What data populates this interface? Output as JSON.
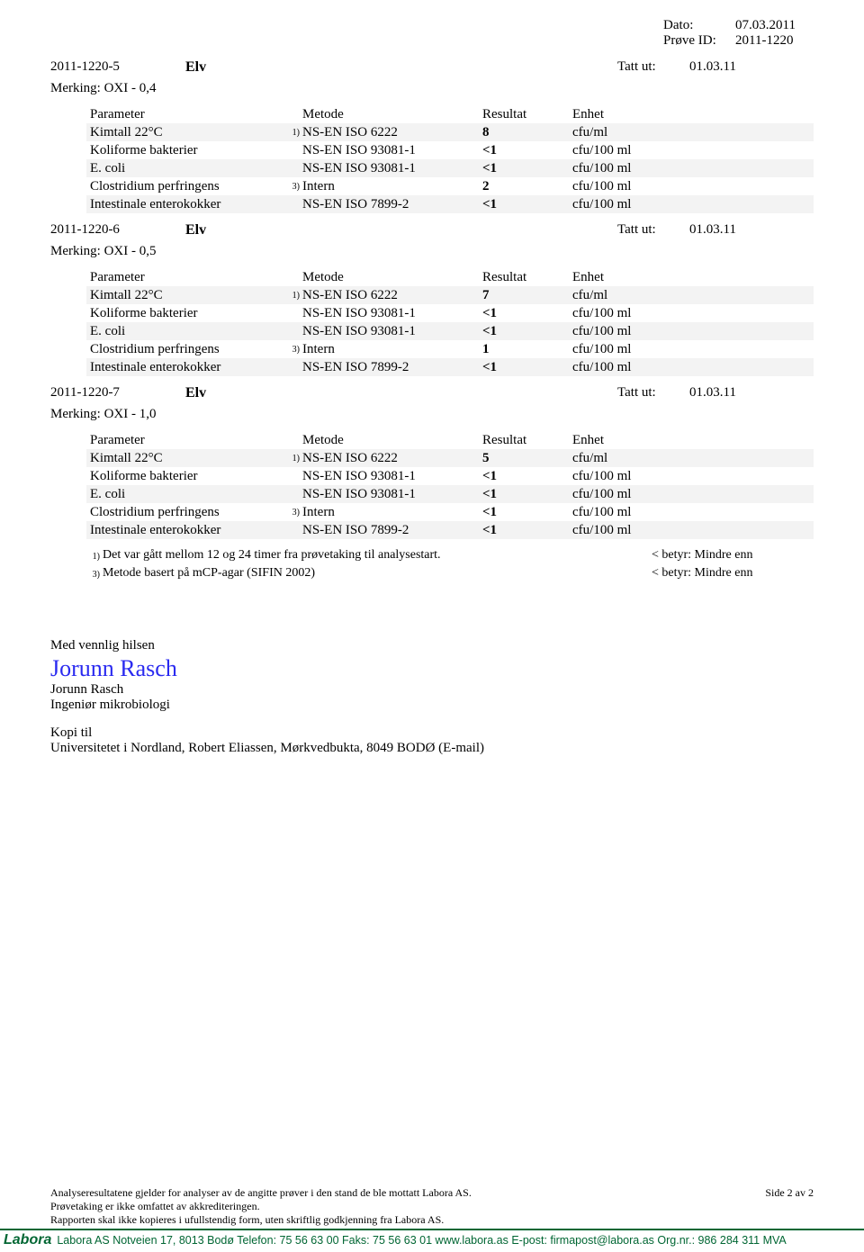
{
  "header": {
    "dato_label": "Dato:",
    "dato_value": "07.03.2011",
    "prove_label": "Prøve ID:",
    "prove_value": "2011-1220"
  },
  "column_headers": {
    "param": "Parameter",
    "metode": "Metode",
    "resultat": "Resultat",
    "enhet": "Enhet"
  },
  "tatt_ut_label": "Tatt ut:",
  "samples": [
    {
      "id": "2011-1220-5",
      "type": "Elv",
      "tatt_ut": "01.03.11",
      "merking": "Merking: OXI - 0,4",
      "rows": [
        {
          "param": "Kimtall 22°C",
          "note": "1)",
          "metode": "NS-EN ISO 6222",
          "res": "8",
          "enhet": "cfu/ml",
          "stripe": true
        },
        {
          "param": "Koliforme bakterier",
          "note": "",
          "metode": "NS-EN ISO 93081-1",
          "res": "<1",
          "enhet": "cfu/100 ml",
          "stripe": false
        },
        {
          "param": "E. coli",
          "note": "",
          "metode": "NS-EN ISO 93081-1",
          "res": "<1",
          "enhet": "cfu/100 ml",
          "stripe": true
        },
        {
          "param": "Clostridium perfringens",
          "note": "3)",
          "metode": "Intern",
          "res": "2",
          "enhet": "cfu/100 ml",
          "stripe": false
        },
        {
          "param": "Intestinale enterokokker",
          "note": "",
          "metode": "NS-EN ISO 7899-2",
          "res": "<1",
          "enhet": "cfu/100 ml",
          "stripe": true
        }
      ]
    },
    {
      "id": "2011-1220-6",
      "type": "Elv",
      "tatt_ut": "01.03.11",
      "merking": "Merking: OXI - 0,5",
      "rows": [
        {
          "param": "Kimtall 22°C",
          "note": "1)",
          "metode": "NS-EN ISO 6222",
          "res": "7",
          "enhet": "cfu/ml",
          "stripe": true
        },
        {
          "param": "Koliforme bakterier",
          "note": "",
          "metode": "NS-EN ISO 93081-1",
          "res": "<1",
          "enhet": "cfu/100 ml",
          "stripe": false
        },
        {
          "param": "E. coli",
          "note": "",
          "metode": "NS-EN ISO 93081-1",
          "res": "<1",
          "enhet": "cfu/100 ml",
          "stripe": true
        },
        {
          "param": "Clostridium perfringens",
          "note": "3)",
          "metode": "Intern",
          "res": "1",
          "enhet": "cfu/100 ml",
          "stripe": false
        },
        {
          "param": "Intestinale enterokokker",
          "note": "",
          "metode": "NS-EN ISO 7899-2",
          "res": "<1",
          "enhet": "cfu/100 ml",
          "stripe": true
        }
      ]
    },
    {
      "id": "2011-1220-7",
      "type": "Elv",
      "tatt_ut": "01.03.11",
      "merking": "Merking: OXI - 1,0",
      "rows": [
        {
          "param": "Kimtall 22°C",
          "note": "1)",
          "metode": "NS-EN ISO 6222",
          "res": "5",
          "enhet": "cfu/ml",
          "stripe": true
        },
        {
          "param": "Koliforme bakterier",
          "note": "",
          "metode": "NS-EN ISO 93081-1",
          "res": "<1",
          "enhet": "cfu/100 ml",
          "stripe": false
        },
        {
          "param": "E. coli",
          "note": "",
          "metode": "NS-EN ISO 93081-1",
          "res": "<1",
          "enhet": "cfu/100 ml",
          "stripe": true
        },
        {
          "param": "Clostridium perfringens",
          "note": "3)",
          "metode": "Intern",
          "res": "<1",
          "enhet": "cfu/100 ml",
          "stripe": false
        },
        {
          "param": "Intestinale enterokokker",
          "note": "",
          "metode": "NS-EN ISO 7899-2",
          "res": "<1",
          "enhet": "cfu/100 ml",
          "stripe": true
        }
      ]
    }
  ],
  "footnotes": [
    {
      "n": "1)",
      "text": "Det var gått mellom 12 og 24 timer fra prøvetaking til analysestart.",
      "right": "< betyr: Mindre enn"
    },
    {
      "n": "3)",
      "text": "Metode basert på mCP-agar (SIFIN 2002)",
      "right": "< betyr: Mindre enn"
    }
  ],
  "closing": {
    "greeting": "Med vennlig hilsen",
    "signature": "Jorunn Rasch",
    "name": "Jorunn Rasch",
    "title": "Ingeniør mikrobiologi",
    "kopi_label": "Kopi til",
    "kopi_text": "Universitetet i Nordland, Robert Eliassen, Mørkvedbukta, 8049  BODØ (E-mail)"
  },
  "bottom": {
    "l1": "Analyseresultatene gjelder for analyser av de angitte prøver i den stand de ble mottatt Labora AS.",
    "l2": "Prøvetaking er ikke omfattet av akkrediteringen.",
    "l3": "Rapporten skal ikke kopieres i ufullstendig form,  uten skriftlig godkjenning fra Labora AS.",
    "page": "Side 2 av 2"
  },
  "contact": {
    "logo": "Labora",
    "text": "Labora AS  Notveien 17, 8013 Bodø  Telefon: 75 56 63 00  Faks: 75 56 63 01  www.labora.as  E-post: firmapost@labora.as  Org.nr.: 986 284 311 MVA"
  }
}
